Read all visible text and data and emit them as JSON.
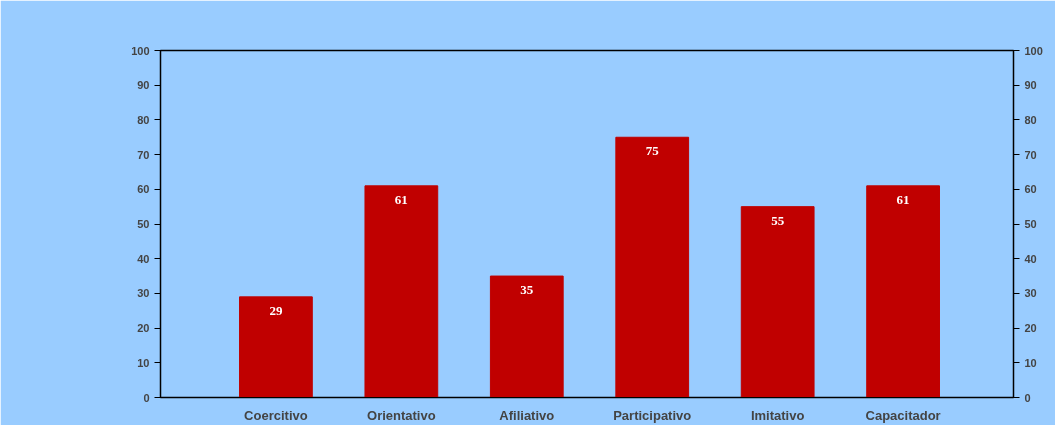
{
  "chart_data": {
    "type": "bar",
    "categories": [
      "Coercitivo",
      "Orientativo",
      "Afiliativo",
      "Participativo",
      "Imitativo",
      "Capacitador"
    ],
    "values": [
      29,
      61,
      35,
      75,
      55,
      61
    ],
    "color": "#c00000",
    "data_labels": true,
    "ylim": [
      0,
      100
    ],
    "yticks": [
      0,
      10,
      20,
      30,
      40,
      50,
      60,
      70,
      80,
      90,
      100
    ],
    "y2lim": [
      0,
      100
    ],
    "y2ticks": [
      0,
      10,
      20,
      30,
      40,
      50,
      60,
      70,
      80,
      90,
      100
    ]
  }
}
